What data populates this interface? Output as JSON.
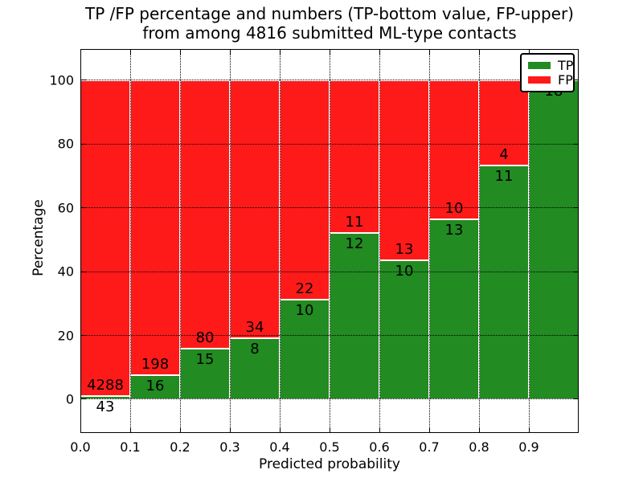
{
  "chart_data": {
    "type": "bar",
    "stacked": true,
    "normalization": "each bin drawn as percent of bin total (TP+FP)",
    "title_lines": [
      "TP /FP percentage and numbers (TP-bottom value, FP-upper)",
      "from among 4816 submitted ML-type contacts"
    ],
    "xlabel": "Predicted probability",
    "ylabel": "Percentage",
    "xticks": [
      "0.0",
      "0.1",
      "0.2",
      "0.3",
      "0.4",
      "0.5",
      "0.6",
      "0.7",
      "0.8",
      "0.9"
    ],
    "yticks": [
      0,
      20,
      40,
      60,
      80,
      100
    ],
    "xlim": [
      0.0,
      1.0
    ],
    "bin_width": 0.1,
    "total_contacts": 4816,
    "grid": "dotted",
    "legend_position": "upper right",
    "series": [
      {
        "name": "TP",
        "color": "#228b22",
        "counts": [
          43,
          16,
          15,
          8,
          10,
          12,
          10,
          13,
          11,
          18
        ]
      },
      {
        "name": "FP",
        "color": "#ff1a1a",
        "counts": [
          4288,
          198,
          80,
          34,
          22,
          11,
          13,
          10,
          4,
          0
        ]
      }
    ],
    "tp_percent_of_bin": [
      0.99,
      7.48,
      15.79,
      19.05,
      31.25,
      52.17,
      43.48,
      56.52,
      73.33,
      100.0
    ]
  }
}
